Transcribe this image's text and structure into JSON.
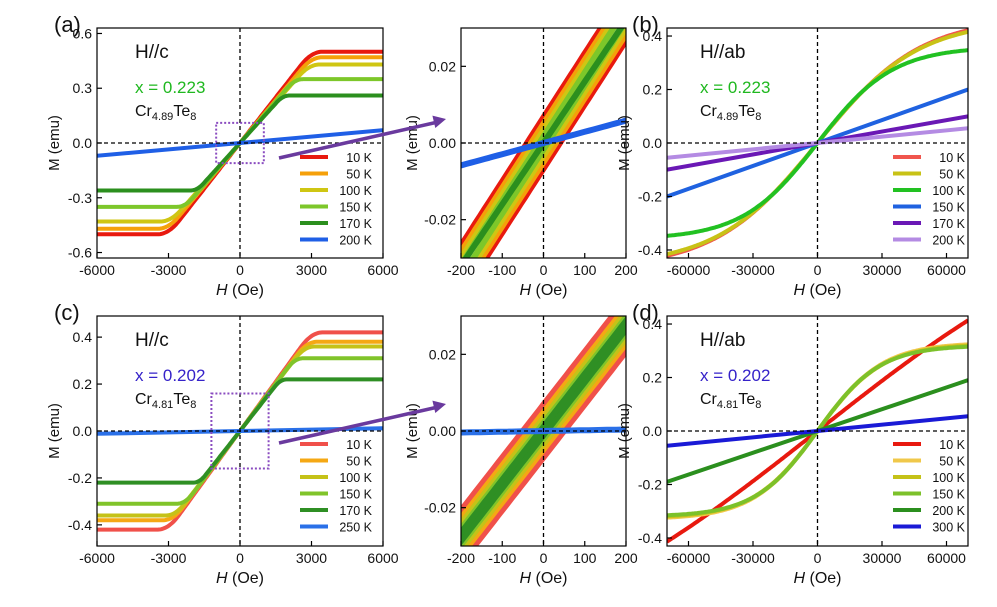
{
  "colors": {
    "zero_line": "#000000",
    "zoom_box": "#8a4cc0",
    "arrow": "#6a3a9e"
  },
  "chart_data": [
    {
      "id": "a",
      "panel_label": "(a)",
      "type": "line",
      "field": "H//c",
      "x_label": "x = 0.223",
      "x_label_color": "#1fb81f",
      "composition": {
        "base": "Cr",
        "sub1": "4.89",
        "mid": "Te",
        "sub2": "8"
      },
      "xlabel_italic": "H",
      "xlabel_rest": " (Oe)",
      "ylabel": "M (emu)",
      "xlim": [
        -6000,
        6000
      ],
      "ylim": [
        -0.63,
        0.63
      ],
      "xticks": [
        -6000,
        -3000,
        0,
        3000,
        6000
      ],
      "yticks": [
        -0.6,
        -0.3,
        0.0,
        0.3,
        0.6
      ],
      "ytick_labels": [
        "-0.6",
        "-0.3",
        "0.0",
        "0.3",
        "0.6"
      ],
      "zoom_box": {
        "x": [
          -1000,
          1000
        ],
        "y": [
          -0.11,
          0.11
        ]
      },
      "legend_position": "bottom-right",
      "series": [
        {
          "name": "10 K",
          "color": "#e8190f",
          "ms": 0.5,
          "hs": 3000,
          "shape": "sat",
          "hc": 40
        },
        {
          "name": "50 K",
          "color": "#f5a00a",
          "ms": 0.47,
          "hs": 3000,
          "shape": "sat",
          "hc": 30
        },
        {
          "name": "100 K",
          "color": "#cfc613",
          "ms": 0.43,
          "hs": 2900,
          "shape": "sat",
          "hc": 20
        },
        {
          "name": "150 K",
          "color": "#7dc72a",
          "ms": 0.35,
          "hs": 2300,
          "shape": "sat",
          "hc": 10
        },
        {
          "name": "170 K",
          "color": "#2b8f1e",
          "ms": 0.26,
          "hs": 1800,
          "shape": "sat",
          "hc": 0
        },
        {
          "name": "200 K",
          "color": "#1f5fe6",
          "ms": 0.07,
          "hs": 6000,
          "shape": "lin",
          "hc": 0
        }
      ]
    },
    {
      "id": "a_zoom",
      "type": "line",
      "xlabel_italic": "H",
      "xlabel_rest": " (Oe)",
      "ylabel": "M (emu)",
      "xlim": [
        -200,
        200
      ],
      "ylim": [
        -0.03,
        0.03
      ],
      "xticks": [
        -200,
        -100,
        0,
        100,
        200
      ],
      "yticks": [
        -0.02,
        0.0,
        0.02
      ],
      "ytick_labels": [
        "-0.02",
        "0.00",
        "0.02"
      ],
      "series": [
        {
          "name": "10 K",
          "color": "#e8190f",
          "slope": 0.000167,
          "hc": 40,
          "hyst": true
        },
        {
          "name": "50 K",
          "color": "#f5a00a",
          "slope": 0.000167,
          "hc": 30,
          "hyst": true
        },
        {
          "name": "100 K",
          "color": "#cfc613",
          "slope": 0.000167,
          "hc": 20,
          "hyst": true
        },
        {
          "name": "150 K",
          "color": "#7dc72a",
          "slope": 0.000167,
          "hc": 10,
          "hyst": true
        },
        {
          "name": "170 K",
          "color": "#2b8f1e",
          "slope": 0.00016,
          "hc": 0,
          "hyst": false
        },
        {
          "name": "200 K",
          "color": "#1f5fe6",
          "slope": 2.92e-05,
          "hc": 0,
          "hyst": false
        }
      ]
    },
    {
      "id": "b",
      "panel_label": "(b)",
      "type": "line",
      "field": "H//ab",
      "x_label": "x = 0.223",
      "x_label_color": "#1fb81f",
      "composition": {
        "base": "Cr",
        "sub1": "4.89",
        "mid": "Te",
        "sub2": "8"
      },
      "xlabel_italic": "H",
      "xlabel_rest": " (Oe)",
      "ylabel": "M (emu)",
      "xlim": [
        -70000,
        70000
      ],
      "ylim": [
        -0.43,
        0.43
      ],
      "xticks": [
        -60000,
        -30000,
        0,
        30000,
        60000
      ],
      "yticks": [
        -0.4,
        -0.2,
        0.0,
        0.2,
        0.4
      ],
      "ytick_labels": [
        "-0.4",
        "-0.2",
        "0.0",
        "0.2",
        "0.4"
      ],
      "legend_position": "bottom-right",
      "series": [
        {
          "name": "10 K",
          "color": "#f0554d",
          "a": 0.47,
          "s": 48000,
          "shape": "tanh"
        },
        {
          "name": "50 K",
          "color": "#c8c216",
          "a": 0.46,
          "s": 47000,
          "shape": "tanh"
        },
        {
          "name": "100 K",
          "color": "#22c122",
          "a": 0.36,
          "s": 35000,
          "shape": "tanh"
        },
        {
          "name": "150 K",
          "color": "#1f62e0",
          "a": 0.2,
          "s": 70000,
          "shape": "lin"
        },
        {
          "name": "170 K",
          "color": "#6a18b5",
          "a": 0.1,
          "s": 70000,
          "shape": "lin"
        },
        {
          "name": "200 K",
          "color": "#b48be3",
          "a": 0.055,
          "s": 70000,
          "shape": "lin"
        }
      ]
    },
    {
      "id": "c",
      "panel_label": "(c)",
      "type": "line",
      "field": "H//c",
      "x_label": "x = 0.202",
      "x_label_color": "#3522c9",
      "composition": {
        "base": "Cr",
        "sub1": "4.81",
        "mid": "Te",
        "sub2": "8"
      },
      "xlabel_italic": "H",
      "xlabel_rest": " (Oe)",
      "ylabel": "M (emu)",
      "xlim": [
        -6000,
        6000
      ],
      "ylim": [
        -0.49,
        0.49
      ],
      "xticks": [
        -6000,
        -3000,
        0,
        3000,
        6000
      ],
      "yticks": [
        -0.4,
        -0.2,
        0.0,
        0.2,
        0.4
      ],
      "ytick_labels": [
        "-0.4",
        "-0.2",
        "0.0",
        "0.2",
        "0.4"
      ],
      "zoom_box": {
        "x": [
          -1200,
          1200
        ],
        "y": [
          -0.16,
          0.16
        ]
      },
      "legend_position": "bottom-right",
      "series": [
        {
          "name": "10 K",
          "color": "#f0504a",
          "ms": 0.42,
          "hs": 3000,
          "shape": "sat",
          "hc": 40
        },
        {
          "name": "50 K",
          "color": "#f5a814",
          "ms": 0.38,
          "hs": 2800,
          "shape": "sat",
          "hc": 30
        },
        {
          "name": "100 K",
          "color": "#c5c218",
          "ms": 0.36,
          "hs": 2700,
          "shape": "sat",
          "hc": 20
        },
        {
          "name": "150 K",
          "color": "#80c42a",
          "ms": 0.31,
          "hs": 2300,
          "shape": "sat",
          "hc": 10
        },
        {
          "name": "170 K",
          "color": "#2f8f24",
          "ms": 0.22,
          "hs": 1700,
          "shape": "sat",
          "hc": 0
        },
        {
          "name": "250 K",
          "color": "#2a70e8",
          "ms": 0.012,
          "hs": 6000,
          "shape": "lin",
          "hc": 0
        }
      ]
    },
    {
      "id": "c_zoom",
      "type": "line",
      "xlabel_italic": "H",
      "xlabel_rest": " (Oe)",
      "ylabel": "M (emu)",
      "xlim": [
        -200,
        200
      ],
      "ylim": [
        -0.03,
        0.03
      ],
      "xticks": [
        -200,
        -100,
        0,
        100,
        200
      ],
      "yticks": [
        -0.02,
        0.0,
        0.02
      ],
      "ytick_labels": [
        "-0.02",
        "0.00",
        "0.02"
      ],
      "series": [
        {
          "name": "10 K",
          "color": "#f0504a",
          "slope": 0.000138,
          "hc": 50,
          "hyst": true
        },
        {
          "name": "50 K",
          "color": "#f5a814",
          "slope": 0.000138,
          "hc": 35,
          "hyst": true
        },
        {
          "name": "100 K",
          "color": "#c5c218",
          "slope": 0.000138,
          "hc": 25,
          "hyst": true
        },
        {
          "name": "150 K",
          "color": "#80c42a",
          "slope": 0.000138,
          "hc": 15,
          "hyst": true
        },
        {
          "name": "170 K",
          "color": "#2f8f24",
          "slope": 0.000138,
          "hc": 8,
          "hyst": true
        },
        {
          "name": "250 K",
          "color": "#2a70e8",
          "slope": 2e-06,
          "hc": 0,
          "hyst": false
        }
      ]
    },
    {
      "id": "d",
      "panel_label": "(d)",
      "type": "line",
      "field": "H//ab",
      "x_label": "x = 0.202",
      "x_label_color": "#3522c9",
      "composition": {
        "base": "Cr",
        "sub1": "4.81",
        "mid": "Te",
        "sub2": "8"
      },
      "xlabel_italic": "H",
      "xlabel_rest": " (Oe)",
      "ylabel": "M (emu)",
      "xlim": [
        -70000,
        70000
      ],
      "ylim": [
        -0.43,
        0.43
      ],
      "xticks": [
        -60000,
        -30000,
        0,
        30000,
        60000
      ],
      "yticks": [
        -0.4,
        -0.2,
        0.0,
        0.2,
        0.4
      ],
      "ytick_labels": [
        "-0.4",
        "-0.2",
        "0.0",
        "0.2",
        "0.4"
      ],
      "legend_position": "bottom-right",
      "series": [
        {
          "name": "10 K",
          "color": "#e8190f",
          "a": 0.95,
          "s": 150000,
          "shape": "tanh"
        },
        {
          "name": "50 K",
          "color": "#f0c84a",
          "a": 0.33,
          "s": 30000,
          "shape": "tanh"
        },
        {
          "name": "100 K",
          "color": "#c5c218",
          "a": 0.325,
          "s": 30000,
          "shape": "tanh"
        },
        {
          "name": "150 K",
          "color": "#7cc12a",
          "a": 0.32,
          "s": 29000,
          "shape": "tanh"
        },
        {
          "name": "200 K",
          "color": "#2b8f1e",
          "a": 0.19,
          "s": 70000,
          "shape": "lin"
        },
        {
          "name": "300 K",
          "color": "#1a1ad6",
          "a": 0.055,
          "s": 70000,
          "shape": "lin"
        }
      ]
    }
  ]
}
